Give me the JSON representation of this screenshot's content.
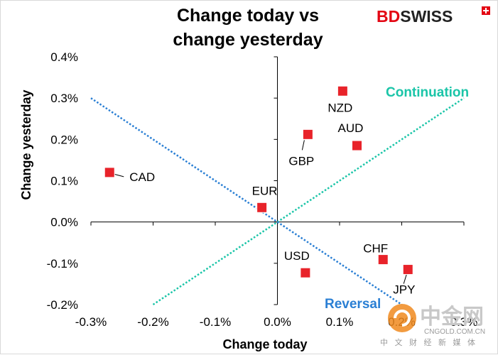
{
  "brand": {
    "name_bd": "BD",
    "name_swiss": "SWISS",
    "flag_color": "#e30613"
  },
  "watermark": {
    "logo_text": "中金网",
    "domain": "CNGOLD.COM.CN",
    "tagline": "中 文 财 经 新 媒 体"
  },
  "chart_data": {
    "type": "scatter",
    "title_line1": "Change today vs",
    "title_line2": "change yesterday",
    "xlabel": "Change today",
    "ylabel": "Change yesterday",
    "xlim": [
      -0.3,
      0.3
    ],
    "ylim": [
      -0.2,
      0.4
    ],
    "x_ticks": [
      "-0.3%",
      "-0.2%",
      "-0.1%",
      "0.0%",
      "0.1%",
      "0.2%",
      "0.3%"
    ],
    "y_ticks": [
      "-0.2%",
      "-0.1%",
      "0.0%",
      "0.1%",
      "0.2%",
      "0.3%",
      "0.4%"
    ],
    "grid": false,
    "marker_color": "#e8232a",
    "points": [
      {
        "label": "NZD",
        "x": 0.105,
        "y": 0.317
      },
      {
        "label": "GBP",
        "x": 0.049,
        "y": 0.212
      },
      {
        "label": "AUD",
        "x": 0.128,
        "y": 0.185
      },
      {
        "label": "CAD",
        "x": -0.27,
        "y": 0.12
      },
      {
        "label": "EUR",
        "x": -0.025,
        "y": 0.035
      },
      {
        "label": "CHF",
        "x": 0.17,
        "y": -0.091
      },
      {
        "label": "USD",
        "x": 0.045,
        "y": -0.123
      },
      {
        "label": "JPY",
        "x": 0.21,
        "y": -0.115
      }
    ],
    "guides": [
      {
        "label": "Continuation",
        "color": "#1bc5a8",
        "from": [
          -0.2,
          -0.2
        ],
        "to": [
          0.3,
          0.3
        ]
      },
      {
        "label": "Reversal",
        "color": "#2a7fd4",
        "from": [
          -0.3,
          0.3
        ],
        "to": [
          0.2,
          -0.2
        ]
      }
    ]
  }
}
